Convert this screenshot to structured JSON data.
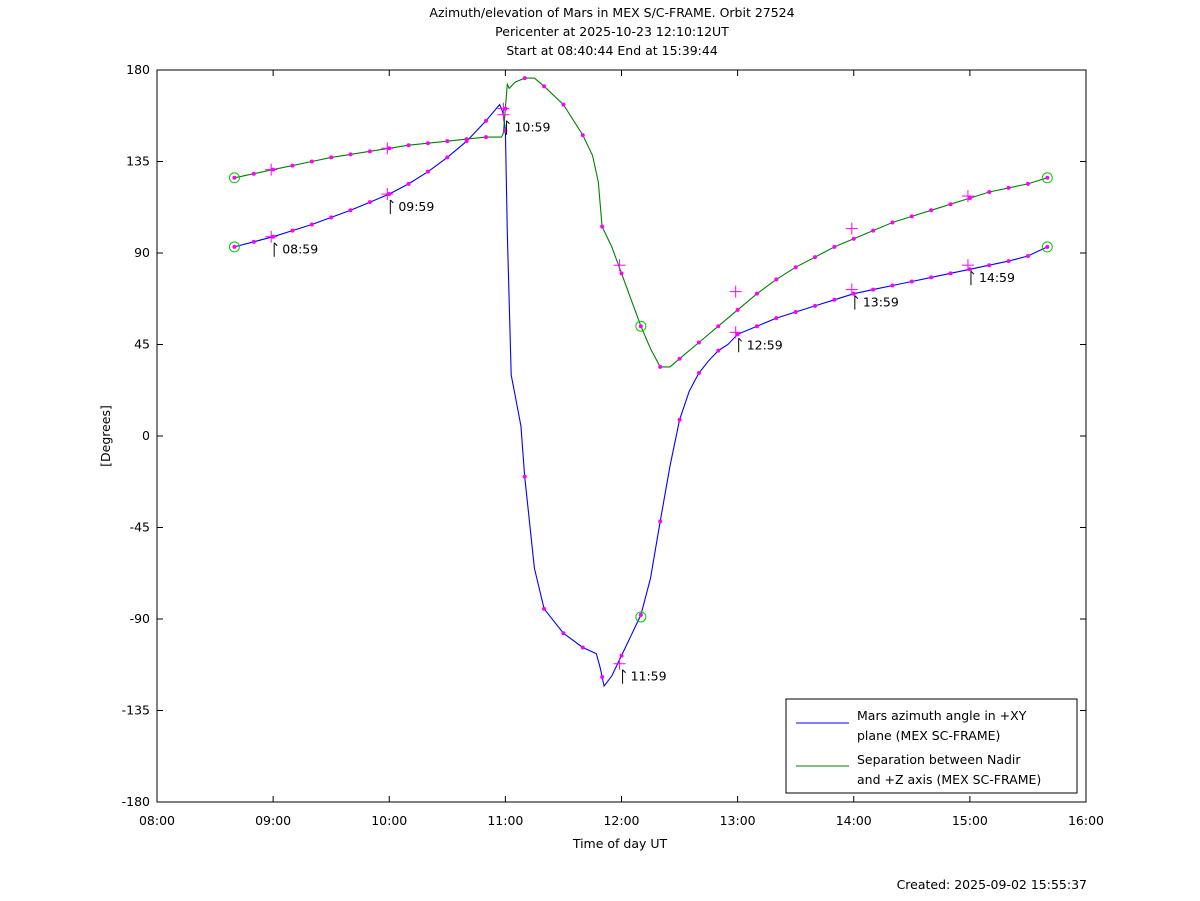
{
  "chart_data": {
    "type": "line",
    "title_lines": [
      "Azimuth/elevation of Mars in MEX S/C-FRAME.  Orbit 27524",
      "Pericenter at 2025-10-23 12:10:12UT",
      "Start at 08:40:44 End at 15:39:44"
    ],
    "xlabel": "Time of day UT",
    "ylabel": "[Degrees]",
    "xlim": [
      "08:00",
      "16:00"
    ],
    "ylim": [
      -180,
      180
    ],
    "x_ticks": [
      "08:00",
      "09:00",
      "10:00",
      "11:00",
      "12:00",
      "13:00",
      "14:00",
      "15:00",
      "16:00"
    ],
    "y_ticks": [
      "180",
      "135",
      "90",
      "45",
      "0",
      "-45",
      "-90",
      "-135",
      "-180"
    ],
    "legend_position": "bottom-right",
    "series": [
      {
        "name": "Mars azimuth angle in +XY plane (MEX SC-FRAME)",
        "legend_lines": [
          "Mars azimuth angle in +XY",
          "plane (MEX SC-FRAME)"
        ],
        "color": "#0000ff",
        "points": [
          [
            "08:40",
            93
          ],
          [
            "08:50",
            95.5
          ],
          [
            "09:00",
            98
          ],
          [
            "09:10",
            101
          ],
          [
            "09:20",
            104
          ],
          [
            "09:30",
            107.5
          ],
          [
            "09:40",
            111
          ],
          [
            "09:50",
            115
          ],
          [
            "10:00",
            119
          ],
          [
            "10:10",
            124
          ],
          [
            "10:20",
            130
          ],
          [
            "10:30",
            137
          ],
          [
            "10:40",
            145
          ],
          [
            "10:50",
            155
          ],
          [
            "10:57",
            163
          ],
          [
            "10:58",
            161
          ],
          [
            "10:59",
            158
          ],
          [
            "11:00",
            150
          ],
          [
            "11:01",
            100
          ],
          [
            "11:03",
            30
          ],
          [
            "11:05",
            20
          ],
          [
            "11:08",
            5
          ],
          [
            "11:10",
            -20
          ],
          [
            "11:15",
            -65
          ],
          [
            "11:20",
            -85
          ],
          [
            "11:30",
            -97
          ],
          [
            "11:40",
            -104
          ],
          [
            "11:47",
            -107
          ],
          [
            "11:49",
            -114
          ],
          [
            "11:51",
            -123
          ],
          [
            "11:55",
            -118
          ],
          [
            "12:00",
            -108
          ],
          [
            "12:05",
            -98
          ],
          [
            "12:10",
            -88
          ],
          [
            "12:15",
            -70
          ],
          [
            "12:20",
            -42
          ],
          [
            "12:25",
            -15
          ],
          [
            "12:30",
            8
          ],
          [
            "12:35",
            22
          ],
          [
            "12:40",
            31
          ],
          [
            "12:45",
            37
          ],
          [
            "12:50",
            42
          ],
          [
            "12:55",
            45
          ],
          [
            "13:00",
            50
          ],
          [
            "13:10",
            54
          ],
          [
            "13:20",
            58
          ],
          [
            "13:30",
            61
          ],
          [
            "13:40",
            64
          ],
          [
            "13:50",
            67
          ],
          [
            "14:00",
            70
          ],
          [
            "14:10",
            72
          ],
          [
            "14:20",
            74
          ],
          [
            "14:30",
            76
          ],
          [
            "14:40",
            78
          ],
          [
            "14:50",
            80
          ],
          [
            "15:00",
            82
          ],
          [
            "15:10",
            84
          ],
          [
            "15:20",
            86
          ],
          [
            "15:30",
            88.5
          ],
          [
            "15:40",
            93
          ]
        ]
      },
      {
        "name": "Separation between Nadir and +Z axis (MEX SC-FRAME)",
        "legend_lines": [
          "Separation between Nadir",
          "and +Z axis (MEX SC-FRAME)"
        ],
        "color": "#008000",
        "points": [
          [
            "08:40",
            127
          ],
          [
            "08:50",
            129
          ],
          [
            "09:00",
            131
          ],
          [
            "09:10",
            133
          ],
          [
            "09:20",
            135
          ],
          [
            "09:30",
            137
          ],
          [
            "09:40",
            138.5
          ],
          [
            "09:50",
            140
          ],
          [
            "10:00",
            141.5
          ],
          [
            "10:10",
            143
          ],
          [
            "10:20",
            144
          ],
          [
            "10:30",
            145
          ],
          [
            "10:40",
            146
          ],
          [
            "10:50",
            147
          ],
          [
            "10:58",
            147
          ],
          [
            "10:59",
            149
          ],
          [
            "11:01",
            173
          ],
          [
            "11:02",
            171
          ],
          [
            "11:05",
            174
          ],
          [
            "11:10",
            176
          ],
          [
            "11:15",
            176
          ],
          [
            "11:20",
            172
          ],
          [
            "11:30",
            163
          ],
          [
            "11:40",
            148
          ],
          [
            "11:45",
            138
          ],
          [
            "11:48",
            125
          ],
          [
            "11:50",
            103
          ],
          [
            "11:55",
            93
          ],
          [
            "12:00",
            80
          ],
          [
            "12:05",
            67
          ],
          [
            "12:10",
            54
          ],
          [
            "12:15",
            43
          ],
          [
            "12:20",
            34
          ],
          [
            "12:25",
            34
          ],
          [
            "12:30",
            38
          ],
          [
            "12:40",
            46
          ],
          [
            "12:50",
            54
          ],
          [
            "13:00",
            62
          ],
          [
            "13:10",
            70
          ],
          [
            "13:20",
            77
          ],
          [
            "13:30",
            83
          ],
          [
            "13:40",
            88
          ],
          [
            "13:50",
            93
          ],
          [
            "14:00",
            97
          ],
          [
            "14:10",
            101
          ],
          [
            "14:20",
            105
          ],
          [
            "14:30",
            108
          ],
          [
            "14:40",
            111
          ],
          [
            "14:50",
            114
          ],
          [
            "15:00",
            117
          ],
          [
            "15:10",
            120
          ],
          [
            "15:20",
            122
          ],
          [
            "15:30",
            124
          ],
          [
            "15:40",
            127
          ]
        ]
      }
    ],
    "endpoint_markers": [
      {
        "time": "08:40",
        "value": 127
      },
      {
        "time": "08:40",
        "value": 93
      },
      {
        "time": "12:10",
        "value": 54
      },
      {
        "time": "12:10",
        "value": -89
      },
      {
        "time": "15:40",
        "value": 127
      },
      {
        "time": "15:40",
        "value": 93
      }
    ],
    "hour_markers": [
      {
        "time": "08:59",
        "value": 98,
        "label": "08:59",
        "labeled": true
      },
      {
        "time": "08:59",
        "value": 131,
        "labeled": false
      },
      {
        "time": "09:59",
        "value": 119,
        "label": "09:59",
        "labeled": true
      },
      {
        "time": "09:59",
        "value": 141.5,
        "labeled": false
      },
      {
        "time": "10:59",
        "value": 158,
        "label": "10:59",
        "labeled": true
      },
      {
        "time": "10:59",
        "value": 161,
        "labeled": false
      },
      {
        "time": "11:59",
        "value": -112,
        "label": "11:59",
        "labeled": true
      },
      {
        "time": "11:59",
        "value": 84,
        "labeled": false
      },
      {
        "time": "12:59",
        "value": 51,
        "label": "12:59",
        "labeled": true
      },
      {
        "time": "12:59",
        "value": 71,
        "labeled": false
      },
      {
        "time": "13:59",
        "value": 72,
        "label": "13:59",
        "labeled": true
      },
      {
        "time": "13:59",
        "value": 102,
        "labeled": false
      },
      {
        "time": "14:59",
        "value": 84,
        "label": "14:59",
        "labeled": true
      },
      {
        "time": "14:59",
        "value": 118,
        "labeled": false
      }
    ],
    "dot_color": "#ff00ff",
    "circle_color": "#00cc00",
    "created": "Created: 2025-09-02 15:55:37"
  }
}
